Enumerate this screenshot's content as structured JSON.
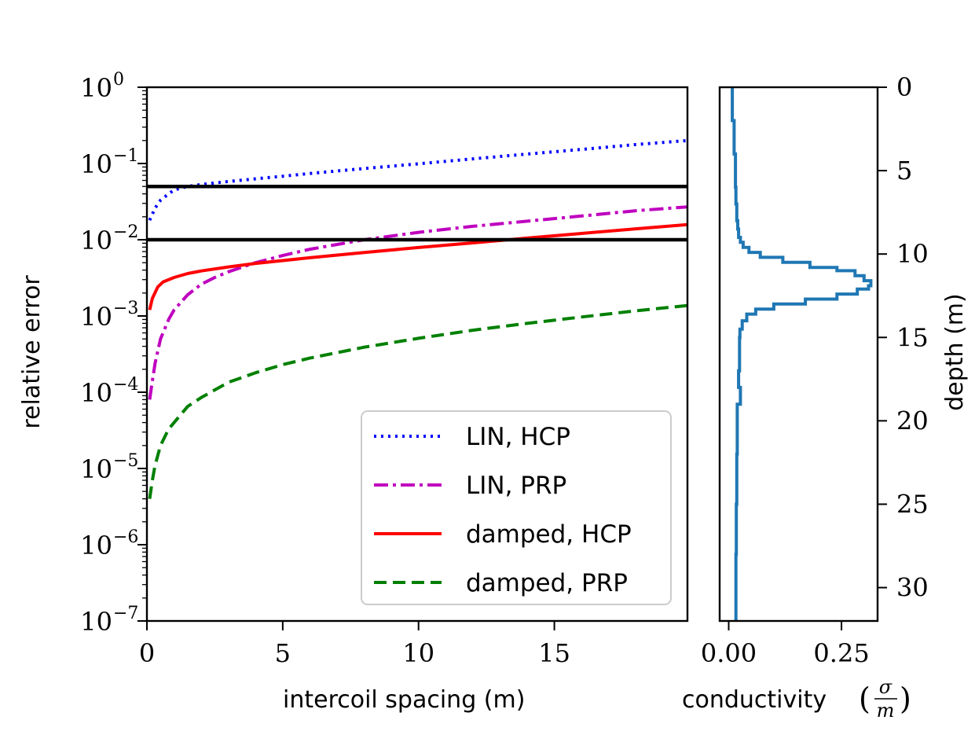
{
  "chart_data": [
    {
      "type": "line",
      "yscale": "log",
      "xlabel": "intercoil spacing (m)",
      "ylabel": "relative error",
      "xlim": [
        0,
        19.9
      ],
      "ylim": [
        1e-07,
        1
      ],
      "x_ticks": [
        0,
        5,
        10,
        15
      ],
      "x_tick_labels": [
        "0",
        "5",
        "10",
        "15"
      ],
      "y_ticks": [
        1,
        0.1,
        0.01,
        0.001,
        0.0001,
        1e-05,
        1e-06,
        1e-07
      ],
      "y_tick_bases": [
        "10",
        "10",
        "10",
        "10",
        "10",
        "10",
        "10",
        "10"
      ],
      "y_tick_exponents": [
        "0",
        "−1",
        "−2",
        "−3",
        "−4",
        "−5",
        "−6",
        "−7"
      ],
      "hlines": [
        0.05,
        0.01
      ],
      "hline_color": "#000000",
      "legend_position": "lower-right",
      "series": [
        {
          "name": "LIN, HCP",
          "color": "#0000ff",
          "style": "dotted",
          "x": [
            0.1,
            0.3,
            0.5,
            0.8,
            1.0,
            1.5,
            2.0,
            3.0,
            4.0,
            5.0,
            6.0,
            8.0,
            10.0,
            12.0,
            14.0,
            16.0,
            18.0,
            19.9
          ],
          "y": [
            0.018,
            0.026,
            0.033,
            0.04,
            0.045,
            0.05,
            0.053,
            0.058,
            0.063,
            0.068,
            0.074,
            0.086,
            0.099,
            0.115,
            0.133,
            0.153,
            0.177,
            0.2
          ]
        },
        {
          "name": "LIN, PRP",
          "color": "#bf00bf",
          "style": "dashdot",
          "x": [
            0.1,
            0.2,
            0.3,
            0.5,
            0.8,
            1.0,
            1.5,
            2.0,
            2.5,
            3.0,
            4.0,
            5.0,
            6.0,
            8.0,
            10.0,
            12.0,
            14.0,
            16.0,
            18.0,
            19.9
          ],
          "y": [
            8e-05,
            0.00014,
            0.00024,
            0.0005,
            0.0009,
            0.0012,
            0.0019,
            0.0026,
            0.0032,
            0.0038,
            0.005,
            0.0062,
            0.0075,
            0.01,
            0.0125,
            0.015,
            0.0175,
            0.0205,
            0.024,
            0.027
          ]
        },
        {
          "name": "damped, HCP",
          "color": "#ff0000",
          "style": "solid",
          "x": [
            0.1,
            0.2,
            0.4,
            0.6,
            1.0,
            1.5,
            2.0,
            3.0,
            4.0,
            6.0,
            8.0,
            10.0,
            12.0,
            14.0,
            16.0,
            18.0,
            19.9
          ],
          "y": [
            0.0012,
            0.0017,
            0.0024,
            0.0028,
            0.0032,
            0.0036,
            0.0039,
            0.0044,
            0.0049,
            0.0058,
            0.0068,
            0.0079,
            0.0091,
            0.0105,
            0.0121,
            0.0139,
            0.0158
          ]
        },
        {
          "name": "damped, PRP",
          "color": "#008000",
          "style": "dashed",
          "x": [
            0.1,
            0.2,
            0.3,
            0.5,
            0.8,
            1.0,
            1.5,
            2.0,
            3.0,
            4.0,
            5.0,
            6.0,
            8.0,
            10.0,
            12.0,
            14.0,
            16.0,
            18.0,
            19.9
          ],
          "y": [
            4e-06,
            7e-06,
            1.1e-05,
            2e-05,
            3.3e-05,
            4e-05,
            6.5e-05,
            8.5e-05,
            0.000135,
            0.00018,
            0.00023,
            0.00028,
            0.00039,
            0.00051,
            0.00065,
            0.0008,
            0.00097,
            0.00117,
            0.00137
          ]
        }
      ]
    },
    {
      "type": "line",
      "xlabel": "conductivity",
      "xlabel_units_numerator": "σ",
      "xlabel_units_denominator": "m",
      "ylabel": "depth (m)",
      "xlim": [
        -0.02,
        0.33
      ],
      "ylim": [
        0,
        32
      ],
      "y_inverted": true,
      "y_axis_side": "right",
      "x_ticks": [
        0.0,
        0.25
      ],
      "x_tick_labels": [
        "0.00",
        "0.25"
      ],
      "y_ticks": [
        0,
        5,
        10,
        15,
        20,
        25,
        30
      ],
      "y_tick_labels": [
        "0",
        "5",
        "10",
        "15",
        "20",
        "25",
        "30"
      ],
      "series": [
        {
          "name": "conductivity profile",
          "color": "#1f77b4",
          "depth": [
            0,
            2,
            4,
            6,
            7,
            8,
            8.5,
            9,
            9.3,
            9.6,
            9.9,
            10.2,
            10.5,
            10.8,
            11.0,
            11.3,
            11.6,
            11.9,
            12.1,
            12.4,
            12.7,
            13.0,
            13.3,
            13.6,
            14.0,
            14.5,
            15,
            17,
            18,
            19,
            22,
            25,
            28,
            32
          ],
          "sigma": [
            0.008,
            0.012,
            0.015,
            0.016,
            0.018,
            0.02,
            0.022,
            0.026,
            0.032,
            0.045,
            0.07,
            0.12,
            0.18,
            0.24,
            0.28,
            0.3,
            0.315,
            0.31,
            0.285,
            0.24,
            0.17,
            0.1,
            0.06,
            0.04,
            0.03,
            0.025,
            0.024,
            0.022,
            0.026,
            0.019,
            0.018,
            0.017,
            0.016,
            0.016
          ]
        }
      ]
    }
  ]
}
